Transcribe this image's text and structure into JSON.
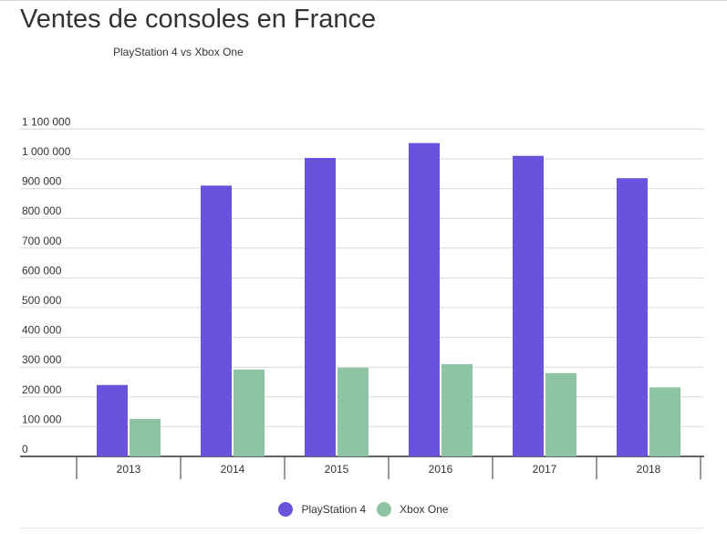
{
  "chart_data": {
    "type": "bar",
    "title": "Ventes de consoles en France",
    "subtitle": "PlayStation 4 vs Xbox One",
    "categories": [
      "2013",
      "2014",
      "2015",
      "2016",
      "2017",
      "2018"
    ],
    "series": [
      {
        "name": "PlayStation 4",
        "color": "#6b52dc",
        "values": [
          240000,
          910000,
          1003000,
          1053000,
          1010000,
          935000
        ]
      },
      {
        "name": "Xbox One",
        "color": "#8dc4a4",
        "values": [
          126000,
          292000,
          298000,
          310000,
          280000,
          232000
        ]
      }
    ],
    "ylim": [
      0,
      1100000
    ],
    "yticks": [
      "0",
      "100 000",
      "200 000",
      "300 000",
      "400 000",
      "500 000",
      "600 000",
      "700 000",
      "800 000",
      "900 000",
      "1 000 000",
      "1 100 000"
    ],
    "grid": true,
    "legend_position": "bottom"
  }
}
